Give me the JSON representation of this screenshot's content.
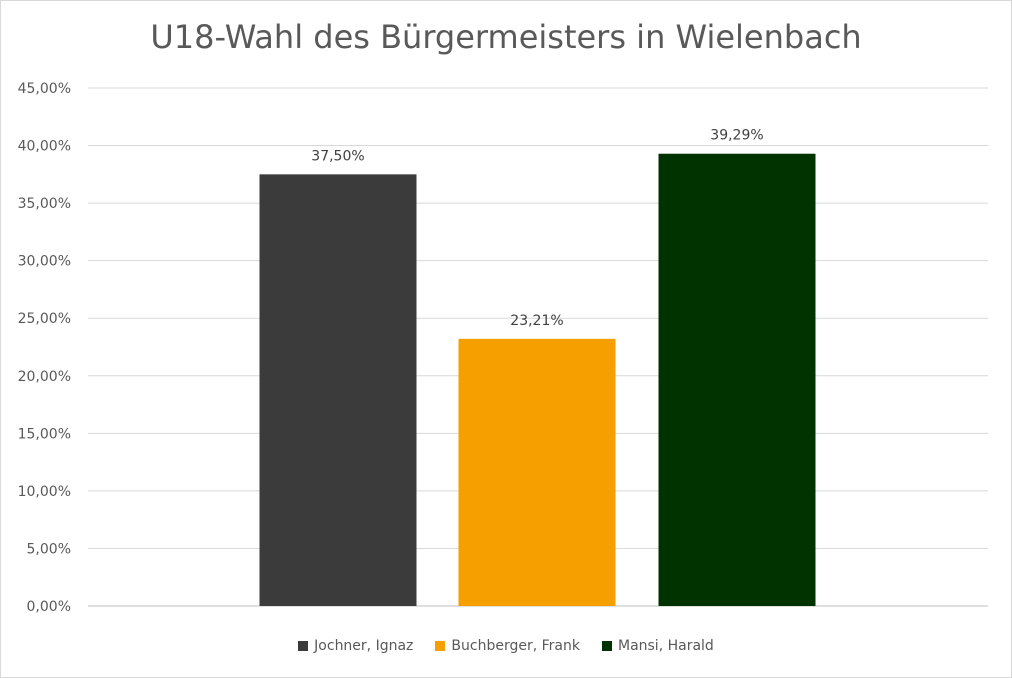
{
  "chart_data": {
    "type": "bar",
    "title": "U18-Wahl des Bürgermeisters in Wielenbach",
    "categories": [
      "Jochner, Ignaz",
      "Buchberger, Frank",
      "Mansi, Harald"
    ],
    "values": [
      37.5,
      23.21,
      39.29
    ],
    "value_labels": [
      "37,50%",
      "23,21%",
      "39,29%"
    ],
    "colors": [
      "#3b3b3b",
      "#f5a000",
      "#003300"
    ],
    "ylim": [
      0,
      45
    ],
    "yticks": [
      "0,00%",
      "5,00%",
      "10,00%",
      "15,00%",
      "20,00%",
      "25,00%",
      "30,00%",
      "35,00%",
      "40,00%",
      "45,00%"
    ],
    "xlabel": "",
    "ylabel": "",
    "grid": true,
    "legend_position": "bottom"
  }
}
